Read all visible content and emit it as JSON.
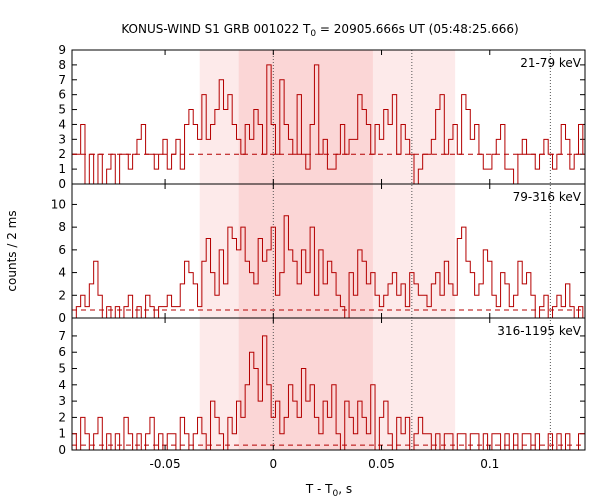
{
  "chart_data": {
    "type": "histogram",
    "title": {
      "prefix": "KONUS-WIND S1 GRB 001022 T",
      "sub": "0",
      "suffix": " = 20905.666s UT (05:48:25.666)"
    },
    "xlabel": {
      "prefix": "T - T",
      "sub": "0",
      "suffix": ", s"
    },
    "ylabel": "counts / 2 ms",
    "xlim": [
      -0.093,
      0.144
    ],
    "bin_width": 0.002,
    "x_ticks": [
      -0.05,
      0,
      0.05,
      0.1
    ],
    "x_tick_labels": [
      "-0.05",
      "0",
      "0.05",
      "0.1"
    ],
    "shaded_intervals": [
      {
        "range": [
          -0.034,
          0.084
        ],
        "level": "light"
      },
      {
        "range": [
          -0.016,
          0.046
        ],
        "level": "dark"
      }
    ],
    "vertical_markers": [
      0.0,
      0.064,
      0.128
    ],
    "colors": {
      "histogram": "#b40000",
      "light_shade": "#fdeaea",
      "dark_shade": "#fbd6d6"
    },
    "panels": [
      {
        "band": "21-79 keV",
        "ylim": [
          0,
          9
        ],
        "y_ticks": [
          0,
          1,
          2,
          3,
          4,
          5,
          6,
          7,
          8,
          9
        ],
        "background": 2.0,
        "counts": [
          2,
          2,
          4,
          0,
          2,
          0,
          2,
          0,
          1,
          2,
          0,
          2,
          2,
          1,
          2,
          3,
          4,
          2,
          2,
          1,
          2,
          3,
          1,
          2,
          3,
          1,
          4,
          5,
          4,
          3,
          6,
          3,
          4,
          5,
          7,
          5,
          6,
          4,
          3,
          2,
          4,
          3,
          5,
          4,
          2,
          8,
          4,
          2,
          7,
          4,
          3,
          2,
          6,
          2,
          1,
          4,
          8,
          2,
          3,
          1,
          1,
          2,
          4,
          2,
          3,
          3,
          6,
          5,
          4,
          2,
          4,
          3,
          5,
          4,
          6,
          2,
          4,
          3,
          2,
          0,
          1,
          2,
          2,
          3,
          5,
          6,
          2,
          3,
          4,
          2,
          6,
          5,
          3,
          4,
          2,
          1,
          1,
          2,
          3,
          4,
          1,
          1,
          0,
          2,
          3,
          2,
          2,
          1,
          2,
          3,
          2,
          1,
          2,
          4,
          3,
          1,
          2,
          4,
          2
        ]
      },
      {
        "band": "79-316 keV",
        "ylim": [
          0,
          11.8
        ],
        "y_ticks": [
          0,
          2,
          4,
          6,
          8,
          10
        ],
        "background": 0.7,
        "counts": [
          0,
          1,
          2,
          1,
          3,
          5,
          2,
          0,
          1,
          0,
          1,
          0,
          1,
          2,
          0,
          1,
          0,
          2,
          1,
          0,
          1,
          1,
          2,
          1,
          1,
          3,
          5,
          4,
          3,
          1,
          5,
          7,
          4,
          2,
          6,
          3,
          8,
          7,
          6,
          8,
          5,
          4,
          3,
          7,
          5,
          6,
          8,
          2,
          4,
          9,
          6,
          5,
          3,
          6,
          4,
          8,
          2,
          6,
          3,
          5,
          4,
          2,
          1,
          0,
          4,
          2,
          6,
          5,
          3,
          4,
          2,
          1,
          2,
          3,
          4,
          2,
          3,
          1,
          4,
          3,
          2,
          2,
          1,
          3,
          4,
          2,
          5,
          3,
          2,
          7,
          8,
          5,
          4,
          2,
          3,
          6,
          5,
          2,
          1,
          4,
          3,
          1,
          2,
          5,
          3,
          4,
          2,
          0,
          1,
          2,
          0,
          1,
          2,
          1,
          3,
          1,
          0,
          1,
          0
        ]
      },
      {
        "band": "316-1195 keV",
        "ylim": [
          0,
          8.1
        ],
        "y_ticks": [
          0,
          1,
          2,
          3,
          4,
          5,
          6,
          7
        ],
        "background": 0.3,
        "counts": [
          1,
          0,
          2,
          1,
          0,
          1,
          2,
          0,
          1,
          0,
          1,
          0,
          2,
          1,
          0,
          1,
          0,
          1,
          2,
          0,
          1,
          0,
          1,
          1,
          0,
          2,
          1,
          0,
          1,
          2,
          1,
          0,
          3,
          2,
          1,
          0,
          2,
          1,
          3,
          2,
          4,
          6,
          5,
          3,
          7,
          4,
          2,
          3,
          1,
          2,
          4,
          3,
          2,
          5,
          3,
          4,
          2,
          1,
          3,
          2,
          4,
          1,
          0,
          3,
          2,
          1,
          3,
          2,
          1,
          4,
          0,
          2,
          3,
          1,
          0,
          2,
          1,
          2,
          0,
          1,
          2,
          1,
          1,
          0,
          1,
          0,
          1,
          1,
          0,
          1,
          1,
          0,
          1,
          1,
          0,
          1,
          0,
          1,
          1,
          0,
          1,
          0,
          1,
          0,
          1,
          1,
          0,
          1,
          0,
          0,
          1,
          0,
          1,
          0,
          1,
          0,
          0,
          1,
          1
        ]
      }
    ]
  }
}
